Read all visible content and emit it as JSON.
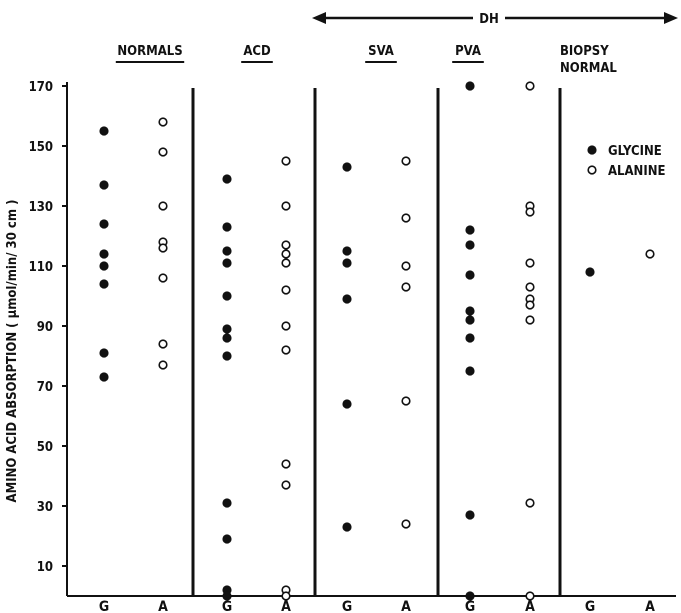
{
  "chart_data": {
    "type": "scatter",
    "ylabel": "AMINO ACID ABSORPTION ( μmol/min/ 30 cm )",
    "ylim": [
      0,
      170
    ],
    "yticks": [
      10,
      30,
      50,
      70,
      90,
      110,
      130,
      150,
      170
    ],
    "dh_label": "DH",
    "groups": [
      {
        "name": "NORMALS",
        "underline": true,
        "glycine": [
          155,
          137,
          124,
          114,
          110,
          104,
          81,
          73
        ],
        "alanine": [
          158,
          148,
          130,
          118,
          116,
          106,
          84,
          77
        ]
      },
      {
        "name": "ACD",
        "underline": true,
        "glycine": [
          139,
          123,
          115,
          111,
          100,
          89,
          86,
          80,
          31,
          19,
          2,
          0
        ],
        "alanine": [
          145,
          130,
          117,
          114,
          111,
          102,
          90,
          82,
          44,
          37,
          2,
          0
        ]
      },
      {
        "name": "SVA",
        "underline": true,
        "glycine": [
          143,
          115,
          111,
          99,
          64,
          23
        ],
        "alanine": [
          145,
          126,
          110,
          103,
          65,
          24
        ]
      },
      {
        "name": "PVA",
        "underline": true,
        "glycine": [
          170,
          122,
          117,
          107,
          95,
          92,
          86,
          75,
          27,
          0
        ],
        "alanine": [
          170,
          130,
          128,
          111,
          103,
          99,
          97,
          92,
          31,
          0
        ]
      },
      {
        "name": "BIOPSY\nNORMAL",
        "underline": false,
        "glycine": [
          108
        ],
        "alanine": [
          114
        ]
      }
    ],
    "x_ticks": [
      "G",
      "A",
      "G",
      "A",
      "G",
      "A",
      "G",
      "A",
      "G",
      "A"
    ],
    "legend": {
      "position": "top-right",
      "entries": [
        {
          "name": "GLYCINE",
          "marker": "filled"
        },
        {
          "name": "ALANINE",
          "marker": "open"
        }
      ]
    },
    "colors": {
      "ink": "#111111",
      "background": "#ffffff"
    }
  }
}
